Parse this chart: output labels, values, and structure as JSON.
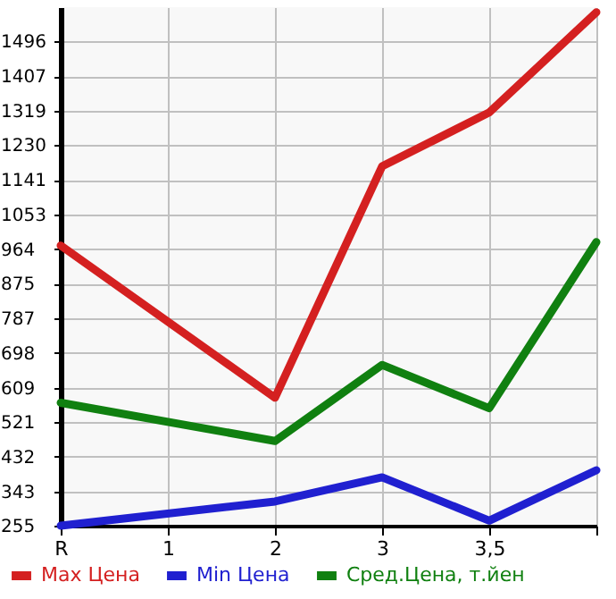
{
  "chart_data": {
    "type": "line",
    "categories": [
      "R",
      "1",
      "2",
      "3",
      "3,5",
      null
    ],
    "series": [
      {
        "name": "Max Цена",
        "color": "#d42020",
        "values": [
          973,
          null,
          583,
          1176,
          1314,
          1571
        ]
      },
      {
        "name": "Min Цена",
        "color": "#2020d0",
        "values": [
          255,
          null,
          317,
          379,
          268,
          397
        ]
      },
      {
        "name": "Сред.Цена, т.йен",
        "color": "#108010",
        "values": [
          570,
          null,
          472,
          667,
          556,
          982
        ]
      }
    ],
    "ylim": [
      255,
      1584
    ],
    "yticks": [
      255,
      343,
      432,
      521,
      609,
      698,
      787,
      875,
      964,
      1053,
      1141,
      1230,
      1319,
      1407,
      1496
    ],
    "grid": true,
    "legend": "bottom",
    "marker": "none",
    "line_style": "solid"
  }
}
